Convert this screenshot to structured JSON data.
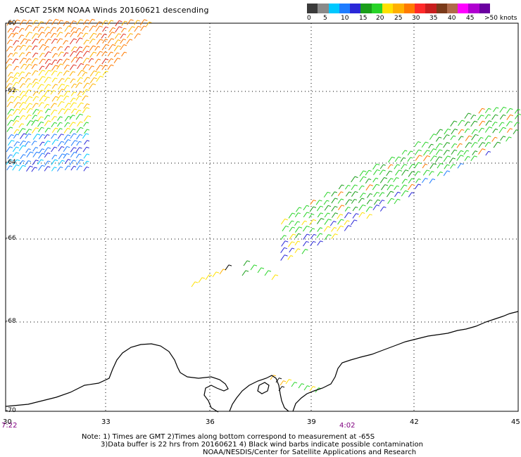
{
  "header": {
    "title": "ASCAT 25KM NOAA Winds 20160621 descending"
  },
  "scale": {
    "colors": [
      "#3a3a3a",
      "#8a8a8a",
      "#00c8ff",
      "#1e7cff",
      "#2a28d8",
      "#1a9e1a",
      "#28d428",
      "#ffe100",
      "#ffb000",
      "#ff7a00",
      "#ff2a2a",
      "#c81e1e",
      "#7a3a1a",
      "#b06a4a",
      "#ff00ff",
      "#b000d0",
      "#6a00a0"
    ],
    "labels": [
      "0",
      "5",
      "10",
      "15",
      "20",
      "25",
      "30",
      "35",
      "40",
      "45",
      ">50 knots"
    ]
  },
  "axes": {
    "lat_labels": [
      "-60",
      "-62",
      "-64",
      "-66",
      "-68",
      "-70"
    ],
    "lon_labels": [
      "30",
      "33",
      "36",
      "39",
      "42",
      "45"
    ]
  },
  "times": {
    "left": "7:22",
    "middle": "4:02"
  },
  "notes": {
    "line1": "Note: 1) Times are GMT 2)Times along bottom correspond to measurement at -65S",
    "line2": "3)Data buffer is 22 hrs from 20160621 4) Black wind barbs indicate possible contamination",
    "line3": "NOAA/NESDIS/Center for Satellite Applications and Research"
  }
}
